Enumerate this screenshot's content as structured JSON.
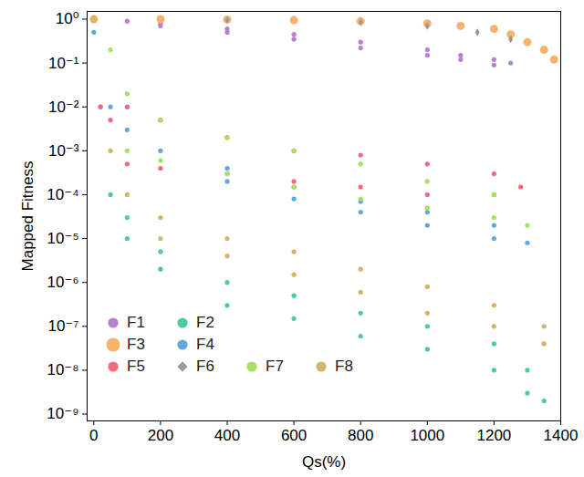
{
  "chart_data": {
    "type": "scatter",
    "x_label": "Qs(%)",
    "y_label": "Mapped Fitness",
    "log": "y",
    "grid": false,
    "legend": "lower left",
    "xlim": [
      -20,
      1400
    ],
    "xticks": [
      0,
      200,
      400,
      600,
      800,
      1000,
      1200,
      1400
    ],
    "ylim": [
      7e-10,
      1.5
    ],
    "yticks": [
      {
        "value": 1e-09,
        "label": "10⁻⁹"
      },
      {
        "value": 1e-08,
        "label": "10⁻⁸"
      },
      {
        "value": 1e-07,
        "label": "10⁻⁷"
      },
      {
        "value": 1e-06,
        "label": "10⁻⁶"
      },
      {
        "value": 1e-05,
        "label": "10⁻⁵"
      },
      {
        "value": 0.0001,
        "label": "10⁻⁴"
      },
      {
        "value": 0.001,
        "label": "10⁻³"
      },
      {
        "value": 0.01,
        "label": "10⁻²"
      },
      {
        "value": 0.1,
        "label": "10⁻¹"
      },
      {
        "value": 1,
        "label": "10⁰"
      }
    ],
    "series": [
      {
        "name": "F1",
        "color": "#b57fd6",
        "marker": "circle",
        "x": [
          0,
          100,
          200,
          200,
          400,
          400,
          600,
          600,
          800,
          800,
          1000,
          1000,
          1100,
          1100,
          1200,
          1200,
          1250
        ],
        "values": [
          1,
          0.9,
          0.8,
          0.7,
          0.6,
          0.5,
          0.45,
          0.35,
          0.3,
          0.22,
          0.2,
          0.15,
          0.15,
          0.12,
          0.12,
          0.09,
          0.1
        ]
      },
      {
        "name": "F2",
        "color": "#4fc9a0",
        "marker": "circle",
        "x": [
          0,
          20,
          50,
          100,
          100,
          200,
          200,
          400,
          400,
          600,
          600,
          800,
          800,
          1000,
          1000,
          1200,
          1200,
          1300,
          1300,
          1350
        ],
        "values": [
          1,
          0.01,
          0.0001,
          3e-05,
          1e-05,
          5e-06,
          2e-06,
          1e-06,
          3e-07,
          5e-07,
          1.5e-07,
          2e-07,
          6e-08,
          1e-07,
          3e-08,
          4e-08,
          1e-08,
          1e-08,
          3e-09,
          2e-09
        ]
      },
      {
        "name": "F3",
        "color": "#f7b36b",
        "marker": "large_circle",
        "x": [
          0,
          200,
          400,
          600,
          800,
          1000,
          1100,
          1200,
          1250,
          1300,
          1350,
          1380
        ],
        "values": [
          1,
          1,
          0.98,
          0.95,
          0.9,
          0.8,
          0.7,
          0.6,
          0.45,
          0.3,
          0.2,
          0.12
        ]
      },
      {
        "name": "F4",
        "color": "#5fa8d8",
        "marker": "circle",
        "x": [
          0,
          50,
          100,
          200,
          400,
          400,
          600,
          600,
          800,
          800,
          1000,
          1000,
          1200,
          1200,
          1300
        ],
        "values": [
          0.5,
          0.01,
          0.003,
          0.001,
          0.0004,
          0.0002,
          0.00015,
          8e-05,
          7e-05,
          4e-05,
          4e-05,
          2e-05,
          2e-05,
          1e-05,
          8e-06
        ]
      },
      {
        "name": "F5",
        "color": "#f26a7c",
        "marker": "circle",
        "x": [
          0,
          20,
          50,
          100,
          100,
          200,
          200,
          400,
          400,
          600,
          600,
          800,
          800,
          1000,
          1000,
          1200,
          1200,
          1280
        ],
        "values": [
          1,
          0.01,
          0.005,
          0.01,
          0.0005,
          0.005,
          0.0004,
          0.002,
          0.0003,
          0.001,
          0.0002,
          0.0008,
          0.00015,
          0.0005,
          0.0001,
          0.0003,
          0.0001,
          0.00015
        ]
      },
      {
        "name": "F6",
        "color": "#999999",
        "marker": "diamond",
        "x": [
          0,
          400,
          800,
          1000,
          1150,
          1250
        ],
        "values": [
          1,
          0.95,
          0.85,
          0.7,
          0.5,
          0.35
        ]
      },
      {
        "name": "F7",
        "color": "#a8e060",
        "marker": "circle",
        "x": [
          0,
          50,
          100,
          100,
          200,
          200,
          400,
          400,
          600,
          600,
          800,
          800,
          1000,
          1000,
          1200,
          1200,
          1300
        ],
        "values": [
          1,
          0.2,
          0.02,
          0.001,
          0.005,
          0.0006,
          0.002,
          0.0003,
          0.001,
          0.00015,
          0.0005,
          8e-05,
          0.0002,
          5e-05,
          0.0001,
          3e-05,
          2e-05
        ]
      },
      {
        "name": "F8",
        "color": "#d4b46a",
        "marker": "circle",
        "x": [
          0,
          50,
          100,
          200,
          200,
          400,
          400,
          600,
          600,
          800,
          800,
          1000,
          1000,
          1200,
          1200,
          1350,
          1350
        ],
        "values": [
          1,
          0.001,
          0.0001,
          3e-05,
          1e-05,
          1e-05,
          4e-06,
          5e-06,
          1.5e-06,
          2e-06,
          6e-07,
          8e-07,
          2e-07,
          3e-07,
          1e-07,
          1e-07,
          4e-08
        ]
      }
    ]
  }
}
